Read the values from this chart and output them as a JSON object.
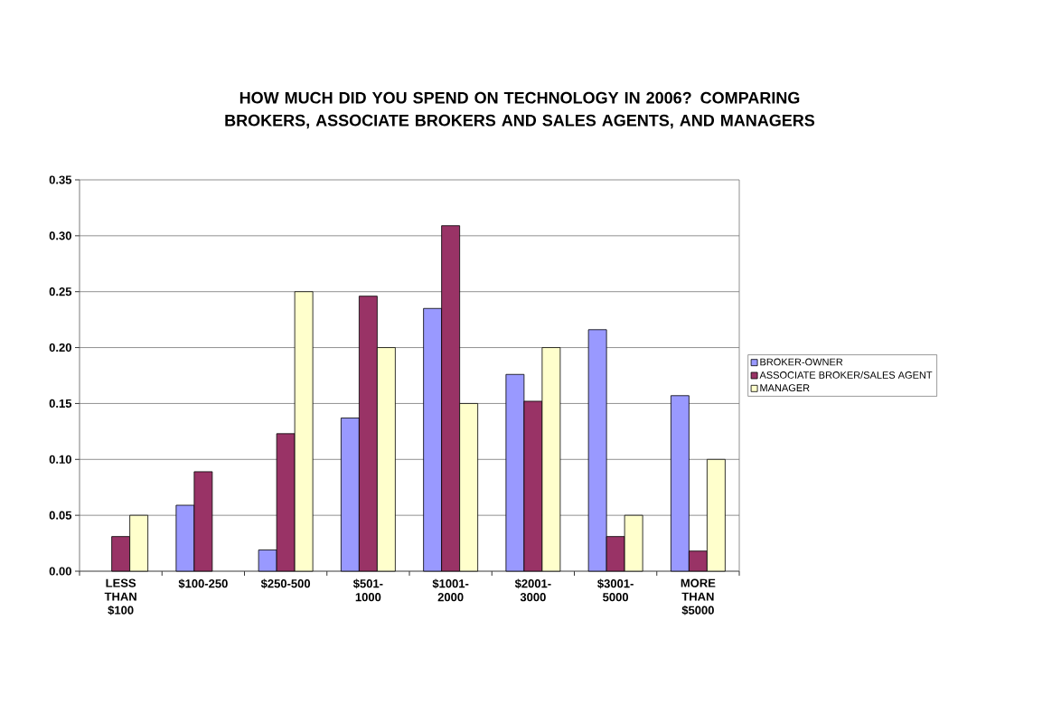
{
  "chart_data": {
    "type": "bar",
    "title": "HOW MUCH DID YOU SPEND ON TECHNOLOGY IN 2006? COMPARING BROKERS, ASSOCIATE BROKERS AND SALES AGENTS, AND MANAGERS",
    "categories": [
      "LESS THAN $100",
      "$100-250",
      "$250-500",
      "$501-1000",
      "$1001-2000",
      "$2001-3000",
      "$3001-5000",
      "MORE THAN $5000"
    ],
    "series": [
      {
        "name": "BROKER-OWNER",
        "color": "#9999ff",
        "values": [
          null,
          0.059,
          0.019,
          0.137,
          0.235,
          0.176,
          0.216,
          0.157
        ]
      },
      {
        "name": "ASSOCIATE BROKER/SALES AGENT",
        "color": "#993366",
        "values": [
          0.031,
          0.089,
          0.123,
          0.246,
          0.309,
          0.152,
          0.031,
          0.018
        ]
      },
      {
        "name": "MANAGER",
        "color": "#ffffcc",
        "values": [
          0.05,
          null,
          0.25,
          0.2,
          0.15,
          0.2,
          0.05,
          0.1
        ]
      }
    ],
    "ylim": [
      0,
      0.35
    ],
    "yticks": [
      {
        "value": 0,
        "label": "0.00"
      },
      {
        "value": 0.05,
        "label": "0.05"
      },
      {
        "value": 0.1,
        "label": "0.10"
      },
      {
        "value": 0.15,
        "label": "0.15"
      },
      {
        "value": 0.2,
        "label": "0.20"
      },
      {
        "value": 0.25,
        "label": "0.25"
      },
      {
        "value": 0.3,
        "label": "0.30"
      },
      {
        "value": 0.35,
        "label": "0.35"
      }
    ],
    "grid": "y",
    "legend": "right"
  }
}
